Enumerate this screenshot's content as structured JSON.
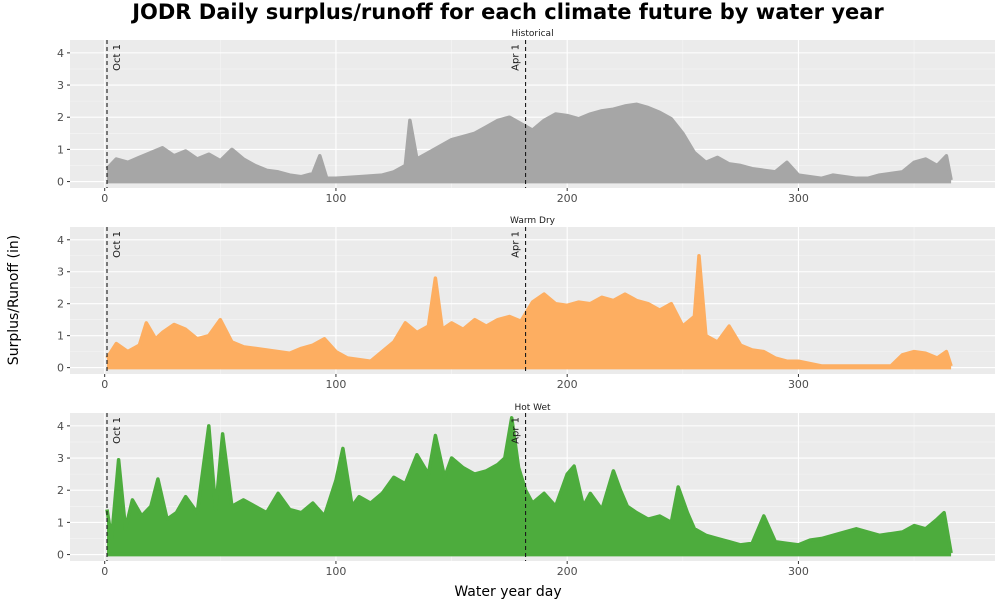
{
  "chart_data": {
    "type": "area",
    "title": "JODR Daily surplus/runoff for each climate future by water year",
    "xlabel": "Water year day",
    "ylabel": "Surplus/Runoff (in)",
    "xlim": [
      -15,
      385
    ],
    "ylim": [
      -0.2,
      4.4
    ],
    "x_ticks": [
      0,
      100,
      200,
      300
    ],
    "y_ticks": [
      0,
      1,
      2,
      3,
      4
    ],
    "grid": true,
    "reference_lines": [
      {
        "x": 1,
        "label": "Oct 1"
      },
      {
        "x": 182,
        "label": "Apr 1"
      }
    ],
    "panels": [
      {
        "name": "Historical",
        "color": "#a6a6a6",
        "points": [
          [
            1,
            0.4
          ],
          [
            5,
            0.7
          ],
          [
            10,
            0.6
          ],
          [
            15,
            0.75
          ],
          [
            20,
            0.9
          ],
          [
            25,
            1.05
          ],
          [
            30,
            0.8
          ],
          [
            35,
            0.95
          ],
          [
            40,
            0.7
          ],
          [
            45,
            0.85
          ],
          [
            50,
            0.65
          ],
          [
            55,
            1.0
          ],
          [
            60,
            0.7
          ],
          [
            65,
            0.5
          ],
          [
            70,
            0.35
          ],
          [
            75,
            0.3
          ],
          [
            80,
            0.2
          ],
          [
            85,
            0.15
          ],
          [
            90,
            0.25
          ],
          [
            93,
            0.8
          ],
          [
            96,
            0.1
          ],
          [
            100,
            0.1
          ],
          [
            110,
            0.15
          ],
          [
            120,
            0.2
          ],
          [
            125,
            0.3
          ],
          [
            130,
            0.5
          ],
          [
            132,
            1.9
          ],
          [
            135,
            0.7
          ],
          [
            140,
            0.9
          ],
          [
            145,
            1.1
          ],
          [
            150,
            1.3
          ],
          [
            155,
            1.4
          ],
          [
            160,
            1.5
          ],
          [
            165,
            1.7
          ],
          [
            170,
            1.9
          ],
          [
            175,
            2.0
          ],
          [
            180,
            1.8
          ],
          [
            185,
            1.6
          ],
          [
            190,
            1.9
          ],
          [
            195,
            2.1
          ],
          [
            200,
            2.05
          ],
          [
            205,
            1.95
          ],
          [
            210,
            2.1
          ],
          [
            215,
            2.2
          ],
          [
            220,
            2.25
          ],
          [
            225,
            2.35
          ],
          [
            230,
            2.4
          ],
          [
            235,
            2.3
          ],
          [
            240,
            2.15
          ],
          [
            245,
            1.95
          ],
          [
            250,
            1.5
          ],
          [
            255,
            0.9
          ],
          [
            260,
            0.6
          ],
          [
            265,
            0.75
          ],
          [
            270,
            0.55
          ],
          [
            275,
            0.5
          ],
          [
            280,
            0.4
          ],
          [
            285,
            0.35
          ],
          [
            290,
            0.3
          ],
          [
            295,
            0.6
          ],
          [
            300,
            0.2
          ],
          [
            305,
            0.15
          ],
          [
            310,
            0.1
          ],
          [
            315,
            0.2
          ],
          [
            320,
            0.15
          ],
          [
            325,
            0.1
          ],
          [
            330,
            0.1
          ],
          [
            335,
            0.2
          ],
          [
            340,
            0.25
          ],
          [
            345,
            0.3
          ],
          [
            350,
            0.6
          ],
          [
            355,
            0.7
          ],
          [
            360,
            0.5
          ],
          [
            364,
            0.8
          ],
          [
            366,
            0.05
          ]
        ]
      },
      {
        "name": "Warm Dry",
        "color": "#fdae61",
        "points": [
          [
            1,
            0.3
          ],
          [
            5,
            0.75
          ],
          [
            10,
            0.5
          ],
          [
            15,
            0.7
          ],
          [
            18,
            1.4
          ],
          [
            22,
            0.9
          ],
          [
            25,
            1.1
          ],
          [
            30,
            1.35
          ],
          [
            35,
            1.2
          ],
          [
            40,
            0.9
          ],
          [
            45,
            1.0
          ],
          [
            50,
            1.5
          ],
          [
            55,
            0.8
          ],
          [
            60,
            0.65
          ],
          [
            65,
            0.6
          ],
          [
            70,
            0.55
          ],
          [
            75,
            0.5
          ],
          [
            80,
            0.45
          ],
          [
            85,
            0.6
          ],
          [
            90,
            0.7
          ],
          [
            95,
            0.9
          ],
          [
            100,
            0.5
          ],
          [
            105,
            0.3
          ],
          [
            110,
            0.25
          ],
          [
            115,
            0.2
          ],
          [
            120,
            0.5
          ],
          [
            125,
            0.8
          ],
          [
            130,
            1.4
          ],
          [
            135,
            1.1
          ],
          [
            140,
            1.3
          ],
          [
            143,
            2.8
          ],
          [
            146,
            1.2
          ],
          [
            150,
            1.4
          ],
          [
            155,
            1.2
          ],
          [
            160,
            1.5
          ],
          [
            165,
            1.3
          ],
          [
            170,
            1.5
          ],
          [
            175,
            1.6
          ],
          [
            180,
            1.45
          ],
          [
            185,
            2.05
          ],
          [
            190,
            2.3
          ],
          [
            195,
            2.0
          ],
          [
            200,
            1.95
          ],
          [
            205,
            2.05
          ],
          [
            210,
            2.0
          ],
          [
            215,
            2.2
          ],
          [
            220,
            2.1
          ],
          [
            225,
            2.3
          ],
          [
            230,
            2.1
          ],
          [
            235,
            2.0
          ],
          [
            240,
            1.8
          ],
          [
            245,
            2.0
          ],
          [
            250,
            1.3
          ],
          [
            255,
            1.6
          ],
          [
            257,
            3.5
          ],
          [
            260,
            1.0
          ],
          [
            265,
            0.8
          ],
          [
            270,
            1.3
          ],
          [
            275,
            0.7
          ],
          [
            280,
            0.55
          ],
          [
            285,
            0.5
          ],
          [
            290,
            0.3
          ],
          [
            295,
            0.2
          ],
          [
            300,
            0.2
          ],
          [
            310,
            0.05
          ],
          [
            330,
            0.05
          ],
          [
            340,
            0.05
          ],
          [
            345,
            0.4
          ],
          [
            350,
            0.5
          ],
          [
            355,
            0.45
          ],
          [
            360,
            0.3
          ],
          [
            364,
            0.5
          ],
          [
            366,
            0.05
          ]
        ]
      },
      {
        "name": "Hot Wet",
        "color": "#4dac3d",
        "points": [
          [
            1,
            1.4
          ],
          [
            3,
            0.5
          ],
          [
            6,
            2.95
          ],
          [
            9,
            0.8
          ],
          [
            12,
            1.7
          ],
          [
            16,
            1.2
          ],
          [
            20,
            1.5
          ],
          [
            23,
            2.35
          ],
          [
            27,
            1.1
          ],
          [
            31,
            1.3
          ],
          [
            35,
            1.8
          ],
          [
            40,
            1.3
          ],
          [
            45,
            4.0
          ],
          [
            48,
            1.4
          ],
          [
            51,
            3.75
          ],
          [
            55,
            1.5
          ],
          [
            60,
            1.7
          ],
          [
            65,
            1.5
          ],
          [
            70,
            1.3
          ],
          [
            75,
            1.9
          ],
          [
            80,
            1.4
          ],
          [
            85,
            1.3
          ],
          [
            90,
            1.6
          ],
          [
            95,
            1.2
          ],
          [
            100,
            2.3
          ],
          [
            103,
            3.3
          ],
          [
            107,
            1.5
          ],
          [
            110,
            1.8
          ],
          [
            115,
            1.6
          ],
          [
            120,
            1.9
          ],
          [
            125,
            2.4
          ],
          [
            130,
            2.2
          ],
          [
            135,
            3.1
          ],
          [
            140,
            2.5
          ],
          [
            143,
            3.7
          ],
          [
            147,
            2.4
          ],
          [
            150,
            3.0
          ],
          [
            155,
            2.7
          ],
          [
            160,
            2.5
          ],
          [
            165,
            2.6
          ],
          [
            170,
            2.8
          ],
          [
            173,
            3.0
          ],
          [
            176,
            4.25
          ],
          [
            179,
            2.7
          ],
          [
            182,
            2.0
          ],
          [
            185,
            1.6
          ],
          [
            190,
            1.9
          ],
          [
            195,
            1.5
          ],
          [
            200,
            2.5
          ],
          [
            203,
            2.75
          ],
          [
            207,
            1.5
          ],
          [
            210,
            1.9
          ],
          [
            215,
            1.4
          ],
          [
            220,
            2.6
          ],
          [
            223,
            2.0
          ],
          [
            226,
            1.5
          ],
          [
            230,
            1.3
          ],
          [
            235,
            1.1
          ],
          [
            240,
            1.2
          ],
          [
            245,
            1.0
          ],
          [
            248,
            2.1
          ],
          [
            252,
            1.3
          ],
          [
            255,
            0.8
          ],
          [
            260,
            0.6
          ],
          [
            265,
            0.5
          ],
          [
            270,
            0.4
          ],
          [
            275,
            0.3
          ],
          [
            280,
            0.35
          ],
          [
            285,
            1.2
          ],
          [
            290,
            0.4
          ],
          [
            295,
            0.35
          ],
          [
            300,
            0.3
          ],
          [
            305,
            0.45
          ],
          [
            310,
            0.5
          ],
          [
            315,
            0.6
          ],
          [
            320,
            0.7
          ],
          [
            325,
            0.8
          ],
          [
            330,
            0.7
          ],
          [
            335,
            0.6
          ],
          [
            340,
            0.65
          ],
          [
            345,
            0.7
          ],
          [
            350,
            0.9
          ],
          [
            355,
            0.8
          ],
          [
            360,
            1.1
          ],
          [
            363,
            1.3
          ],
          [
            366,
            0.05
          ]
        ]
      }
    ]
  }
}
